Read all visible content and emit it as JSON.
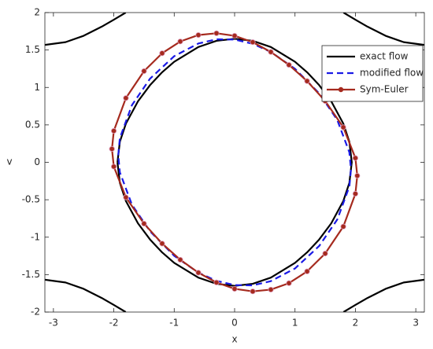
{
  "chart_data": {
    "type": "line",
    "xlabel": "x",
    "ylabel": "v",
    "xlim": [
      -3.1416,
      3.1416
    ],
    "ylim": [
      -2,
      2
    ],
    "xticks": [
      -3,
      -2,
      -1,
      0,
      1,
      2,
      3
    ],
    "yticks": [
      -2,
      -1.5,
      -1,
      -0.5,
      0,
      0.5,
      1,
      1.5,
      2
    ],
    "legend": "upper right",
    "series": [
      {
        "name": "exact flow",
        "color": "#000000",
        "style": "solid",
        "marker": false,
        "x": [
          -1.94,
          -1.9,
          -1.8,
          -1.6,
          -1.4,
          -1.2,
          -1.0,
          -0.6,
          -0.3,
          0,
          0.3,
          0.6,
          1.0,
          1.2,
          1.4,
          1.6,
          1.8,
          1.9,
          1.94,
          1.9,
          1.8,
          1.6,
          1.4,
          1.2,
          1.0,
          0.6,
          0.3,
          0,
          -0.3,
          -0.6,
          -1.0,
          -1.2,
          -1.4,
          -1.6,
          -1.8,
          -1.9,
          -1.94,
          null,
          -3.1416,
          -2.8,
          -2.5,
          -2.2,
          -2.0,
          -1.803,
          null,
          3.1416,
          2.8,
          2.5,
          2.2,
          2.0,
          1.803,
          null,
          -3.1416,
          -2.8,
          -2.5,
          -2.2,
          -2.0,
          -1.803,
          null,
          3.1416,
          2.8,
          2.5,
          2.2,
          2.0,
          1.803
        ],
        "values": [
          0,
          0.275,
          0.517,
          0.815,
          1.031,
          1.203,
          1.343,
          1.54,
          1.623,
          1.65,
          1.623,
          1.54,
          1.343,
          1.203,
          1.031,
          0.815,
          0.517,
          0.275,
          0,
          -0.275,
          -0.517,
          -0.815,
          -1.031,
          -1.203,
          -1.343,
          -1.54,
          -1.623,
          -1.65,
          -1.623,
          -1.54,
          -1.343,
          -1.203,
          -1.031,
          -0.815,
          -0.517,
          -0.275,
          0,
          null,
          1.568,
          1.605,
          1.69,
          1.812,
          1.905,
          2.0,
          null,
          1.568,
          1.605,
          1.69,
          1.812,
          1.905,
          2.0,
          null,
          -1.568,
          -1.605,
          -1.69,
          -1.812,
          -1.905,
          -2.0,
          null,
          -1.568,
          -1.605,
          -1.69,
          -1.812,
          -1.905,
          -2.0
        ]
      },
      {
        "name": "modified flow",
        "color": "#1a1ae6",
        "style": "dashed",
        "marker": false,
        "x": [
          -1.927,
          -1.9,
          -1.7,
          -1.4,
          -1.0,
          -0.6,
          -0.3,
          0,
          0.3,
          0.6,
          1.0,
          1.4,
          1.7,
          1.9,
          1.927,
          1.9,
          1.7,
          1.4,
          1.0,
          0.6,
          0.3,
          0,
          -0.3,
          -0.6,
          -1.0,
          -1.4,
          -1.7,
          -1.9,
          -1.927
        ],
        "values": [
          0.094,
          0.324,
          0.764,
          1.118,
          1.418,
          1.587,
          1.643,
          1.64,
          1.583,
          1.474,
          1.249,
          0.921,
          0.566,
          0.134,
          -0.094,
          -0.324,
          -0.764,
          -1.118,
          -1.418,
          -1.587,
          -1.643,
          -1.64,
          -1.583,
          -1.474,
          -1.249,
          -0.921,
          -0.566,
          -0.134,
          0.094
        ]
      },
      {
        "name": "Sym-Euler",
        "color": "#a52a1e",
        "style": "solid",
        "marker": true,
        "x": [
          -2.031,
          -2.0,
          -1.8,
          -1.5,
          -1.2,
          -0.9,
          -0.6,
          -0.3,
          0,
          0.3,
          0.6,
          0.9,
          1.2,
          1.5,
          1.8,
          2.0,
          2.031,
          2.0,
          1.8,
          1.5,
          1.2,
          0.9,
          0.6,
          0.3,
          0,
          -0.3,
          -0.6,
          -0.9,
          -1.2,
          -1.5,
          -1.8,
          -2.0,
          -2.031
        ],
        "values": [
          0.179,
          0.42,
          0.858,
          1.218,
          1.457,
          1.614,
          1.7,
          1.724,
          1.69,
          1.605,
          1.474,
          1.301,
          1.085,
          0.819,
          0.468,
          0.057,
          -0.179,
          -0.42,
          -0.858,
          -1.218,
          -1.457,
          -1.614,
          -1.7,
          -1.724,
          -1.69,
          -1.605,
          -1.474,
          -1.301,
          -1.085,
          -0.819,
          -0.468,
          -0.057,
          0.179
        ]
      }
    ]
  }
}
